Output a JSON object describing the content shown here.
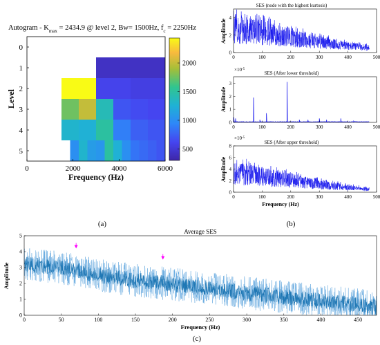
{
  "panels": {
    "a": "(a)",
    "b": "(b)",
    "c": "(c)"
  },
  "autogram": {
    "title_prefix": "Autogram - K",
    "title_sub1": "max",
    "title_mid": " = 2434.9 @ level 2, Bw= 1500Hz, f",
    "title_sub2": "c",
    "title_suffix": " = 2250Hz",
    "xlabel": "Frequency (Hz)",
    "ylabel": "Level",
    "colorbar_ticks": [
      "2000",
      "1500",
      "1000",
      "500"
    ]
  },
  "ses_top": {
    "title": "SES (node with the highest kurtosis)",
    "ylabel": "Amplitude"
  },
  "ses_mid": {
    "title": "SES (After lower threshold)",
    "ylabel": "Amplitude",
    "exponent": "×10",
    "exponent_power": "-5"
  },
  "ses_bot": {
    "title": "SES (After upper threshold)",
    "ylabel": "Amplitude",
    "xlabel": "Frequency (Hz)",
    "exponent": "×10",
    "exponent_power": "-5"
  },
  "avg_ses": {
    "title": "Average SES",
    "ylabel": "Amplitude",
    "xlabel": "Frequency (Hz)"
  },
  "colors": {
    "ses_line": "#1a1aee",
    "avg_line": "#1f77b4",
    "avg_line_light": "#5aa3dd",
    "marker": "#ff00ff"
  },
  "chart_data": [
    {
      "type": "heatmap",
      "title": "Autogram - Kmax = 2434.9 @ level 2, Bw= 1500Hz, fc = 2250Hz",
      "xlabel": "Frequency (Hz)",
      "ylabel": "Level",
      "xlim": [
        0,
        6000
      ],
      "x_ticks": [
        0,
        2000,
        4000,
        6000
      ],
      "y_ticks": [
        0,
        1,
        2,
        3,
        4,
        5
      ],
      "color_range": [
        300,
        2434.9
      ],
      "colorbar_ticks": [
        2000,
        1500,
        1000,
        500
      ],
      "levels": [
        {
          "level": 0,
          "values": [
            null
          ]
        },
        {
          "level": 1,
          "values": [
            null,
            420
          ]
        },
        {
          "level": 2,
          "values": [
            null,
            null,
            2434.9,
            2434.9,
            600,
            600,
            560,
            560
          ]
        },
        {
          "level": 3,
          "values": [
            null,
            null,
            1750,
            2000,
            1400,
            700,
            650,
            620
          ]
        },
        {
          "level": 4,
          "values": [
            null,
            null,
            null,
            null,
            1300,
            1300,
            1250,
            1250,
            1500,
            1500,
            900,
            900,
            750,
            750,
            700,
            700
          ]
        },
        {
          "level": 5,
          "values": [
            null,
            null,
            null,
            null,
            null,
            1000,
            1300,
            1100,
            1050,
            1500,
            1250,
            1000,
            850,
            800,
            750,
            700
          ]
        }
      ]
    },
    {
      "type": "line",
      "title": "SES (node with the highest kurtosis)",
      "xlabel": "",
      "ylabel": "Amplitude",
      "xlim": [
        0,
        500
      ],
      "ylim": [
        0,
        5
      ],
      "x_ticks": [
        0,
        100,
        200,
        300,
        400,
        500
      ],
      "y_ticks": [
        0,
        2,
        4
      ],
      "trend": [
        {
          "x": 0,
          "y": 4.0
        },
        {
          "x": 100,
          "y": 3.4
        },
        {
          "x": 200,
          "y": 2.5
        },
        {
          "x": 300,
          "y": 1.7
        },
        {
          "x": 400,
          "y": 1.1
        },
        {
          "x": 475,
          "y": 0.8
        }
      ],
      "noise_amplitude": 0.9
    },
    {
      "type": "line",
      "title": "SES (After lower threshold)",
      "xlabel": "",
      "ylabel": "Amplitude",
      "y_scale": "×10^-5",
      "xlim": [
        0,
        500
      ],
      "ylim": [
        0,
        3.5
      ],
      "x_ticks": [
        0,
        100,
        200,
        300,
        400,
        500
      ],
      "y_ticks": [
        0,
        1,
        2,
        3
      ],
      "baseline": 0.05,
      "peaks": [
        {
          "x": 1,
          "y": 0.4
        },
        {
          "x": 7,
          "y": 0.3
        },
        {
          "x": 70,
          "y": 1.9
        },
        {
          "x": 92,
          "y": 0.2
        },
        {
          "x": 115,
          "y": 0.7
        },
        {
          "x": 187,
          "y": 3.1
        },
        {
          "x": 230,
          "y": 0.2
        },
        {
          "x": 260,
          "y": 0.2
        },
        {
          "x": 300,
          "y": 0.3
        },
        {
          "x": 325,
          "y": 0.2
        },
        {
          "x": 375,
          "y": 0.3
        },
        {
          "x": 420,
          "y": 0.1
        }
      ]
    },
    {
      "type": "line",
      "title": "SES (After upper threshold)",
      "xlabel": "Frequency (Hz)",
      "ylabel": "Amplitude",
      "y_scale": "×10^-5",
      "xlim": [
        0,
        500
      ],
      "ylim": [
        0,
        8
      ],
      "x_ticks": [
        0,
        100,
        200,
        300,
        400,
        500
      ],
      "y_ticks": [
        0,
        2,
        4,
        6,
        8
      ],
      "trend": [
        {
          "x": 0,
          "y": 4.3
        },
        {
          "x": 50,
          "y": 4.5
        },
        {
          "x": 100,
          "y": 3.9
        },
        {
          "x": 200,
          "y": 3.0
        },
        {
          "x": 300,
          "y": 1.9
        },
        {
          "x": 400,
          "y": 1.2
        },
        {
          "x": 475,
          "y": 0.7
        }
      ],
      "noise_amplitude": 2.0
    },
    {
      "type": "line",
      "title": "Average SES",
      "xlabel": "Frequency (Hz)",
      "ylabel": "Amplitude",
      "xlim": [
        0,
        475
      ],
      "ylim": [
        0,
        5
      ],
      "x_ticks": [
        0,
        50,
        100,
        150,
        200,
        250,
        300,
        350,
        400,
        450
      ],
      "y_ticks": [
        0,
        1,
        2,
        3,
        4,
        5
      ],
      "trend": [
        {
          "x": 0,
          "y": 3.2
        },
        {
          "x": 50,
          "y": 3.0
        },
        {
          "x": 100,
          "y": 2.5
        },
        {
          "x": 150,
          "y": 2.2
        },
        {
          "x": 200,
          "y": 1.95
        },
        {
          "x": 250,
          "y": 1.7
        },
        {
          "x": 300,
          "y": 1.4
        },
        {
          "x": 350,
          "y": 1.15
        },
        {
          "x": 400,
          "y": 0.9
        },
        {
          "x": 450,
          "y": 0.65
        },
        {
          "x": 475,
          "y": 0.5
        }
      ],
      "noise_amplitude": 1.1,
      "markers": [
        {
          "x": 70,
          "y": 4.2
        },
        {
          "x": 187,
          "y": 3.5
        }
      ]
    }
  ]
}
